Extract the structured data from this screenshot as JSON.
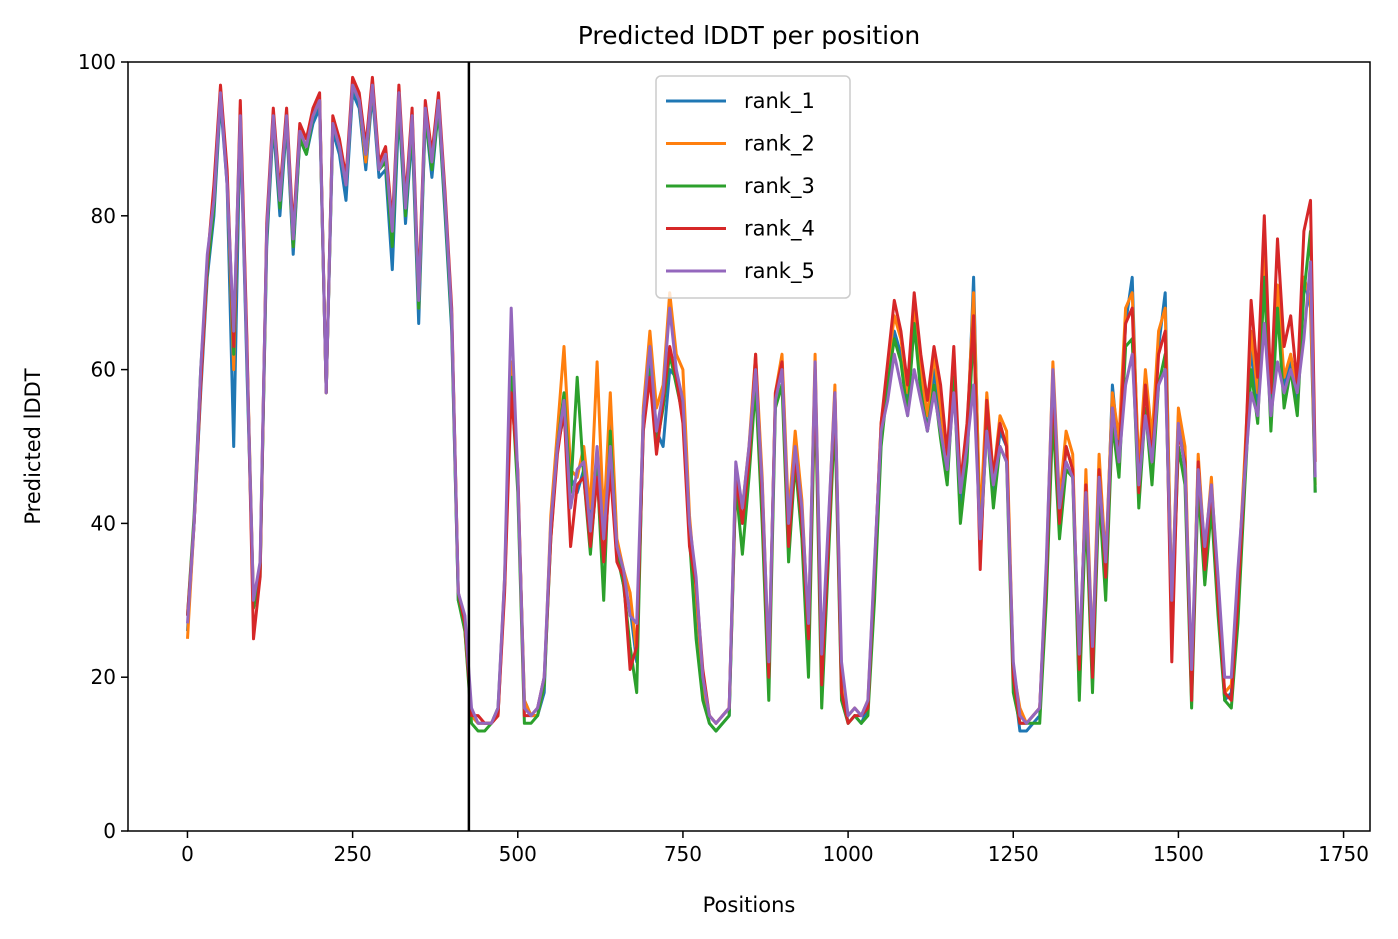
{
  "chart_data": {
    "type": "line",
    "title": "Predicted lDDT per position",
    "xlabel": "Positions",
    "ylabel": "Predicted lDDT",
    "xlim": [
      -90,
      1790
    ],
    "ylim": [
      0,
      100
    ],
    "xticks": [
      0,
      250,
      500,
      750,
      1000,
      1250,
      1500,
      1750
    ],
    "yticks": [
      0,
      20,
      40,
      60,
      80,
      100
    ],
    "vline": 426,
    "vline_color": "#000000",
    "grid": false,
    "legend_position": "upper-center",
    "x": [
      0,
      10,
      20,
      30,
      40,
      50,
      60,
      70,
      80,
      90,
      100,
      110,
      120,
      130,
      140,
      150,
      160,
      170,
      180,
      190,
      200,
      210,
      220,
      230,
      240,
      250,
      260,
      270,
      280,
      290,
      300,
      310,
      320,
      330,
      340,
      350,
      360,
      370,
      380,
      390,
      400,
      410,
      420,
      430,
      440,
      450,
      460,
      470,
      480,
      490,
      500,
      510,
      520,
      530,
      540,
      550,
      560,
      570,
      580,
      590,
      600,
      610,
      620,
      630,
      640,
      650,
      660,
      670,
      680,
      690,
      700,
      710,
      720,
      730,
      740,
      750,
      760,
      770,
      780,
      790,
      800,
      810,
      820,
      830,
      840,
      850,
      860,
      870,
      880,
      890,
      900,
      910,
      920,
      930,
      940,
      950,
      960,
      970,
      980,
      990,
      1000,
      1010,
      1020,
      1030,
      1040,
      1050,
      1060,
      1070,
      1080,
      1090,
      1100,
      1110,
      1120,
      1130,
      1140,
      1150,
      1160,
      1170,
      1180,
      1190,
      1200,
      1210,
      1220,
      1230,
      1240,
      1250,
      1260,
      1270,
      1280,
      1290,
      1300,
      1310,
      1320,
      1330,
      1340,
      1350,
      1360,
      1370,
      1380,
      1390,
      1400,
      1410,
      1420,
      1430,
      1440,
      1450,
      1460,
      1470,
      1480,
      1490,
      1500,
      1510,
      1520,
      1530,
      1540,
      1550,
      1560,
      1570,
      1580,
      1590,
      1600,
      1610,
      1620,
      1630,
      1640,
      1650,
      1660,
      1670,
      1680,
      1690,
      1700,
      1707
    ],
    "series": [
      {
        "name": "rank_1",
        "color": "#1f77b4",
        "values": [
          26,
          40,
          57,
          72,
          80,
          95,
          84,
          50,
          93,
          60,
          30,
          34,
          76,
          92,
          80,
          92,
          75,
          90,
          88,
          92,
          94,
          57,
          91,
          88,
          82,
          96,
          94,
          86,
          96,
          85,
          86,
          73,
          94,
          79,
          91,
          66,
          93,
          85,
          94,
          80,
          65,
          30,
          27,
          15,
          14,
          14,
          14,
          15,
          32,
          60,
          45,
          17,
          15,
          15,
          18,
          40,
          50,
          54,
          46,
          44,
          47,
          40,
          48,
          39,
          56,
          37,
          32,
          29,
          22,
          52,
          62,
          52,
          50,
          60,
          59,
          55,
          40,
          30,
          18,
          14,
          13,
          14,
          15,
          46,
          40,
          48,
          60,
          45,
          20,
          56,
          60,
          40,
          50,
          42,
          25,
          60,
          20,
          38,
          56,
          19,
          14,
          15,
          14,
          16,
          33,
          51,
          58,
          65,
          62,
          55,
          66,
          58,
          52,
          60,
          53,
          46,
          59,
          42,
          50,
          72,
          38,
          55,
          44,
          52,
          50,
          20,
          13,
          13,
          14,
          15,
          32,
          56,
          41,
          50,
          47,
          18,
          45,
          22,
          47,
          33,
          58,
          49,
          66,
          72,
          45,
          58,
          49,
          63,
          70,
          28,
          54,
          49,
          18,
          48,
          35,
          44,
          30,
          17,
          18,
          31,
          47,
          63,
          55,
          78,
          56,
          70,
          58,
          61,
          56,
          72,
          68,
          44
        ]
      },
      {
        "name": "rank_2",
        "color": "#ff7f0e",
        "values": [
          25,
          40,
          58,
          73,
          82,
          96,
          85,
          60,
          94,
          63,
          30,
          34,
          78,
          93,
          82,
          93,
          76,
          91,
          89,
          93,
          95,
          57,
          92,
          89,
          84,
          97,
          95,
          87,
          97,
          86,
          88,
          77,
          96,
          81,
          93,
          68,
          94,
          87,
          95,
          82,
          67,
          31,
          26,
          15,
          14,
          14,
          14,
          15,
          33,
          61,
          46,
          17,
          15,
          15,
          19,
          41,
          52,
          63,
          47,
          46,
          50,
          42,
          61,
          40,
          57,
          38,
          34,
          31,
          23,
          55,
          65,
          55,
          58,
          70,
          62,
          60,
          41,
          31,
          19,
          15,
          14,
          15,
          16,
          47,
          42,
          50,
          62,
          46,
          21,
          57,
          62,
          41,
          52,
          43,
          26,
          62,
          21,
          39,
          58,
          20,
          15,
          16,
          15,
          17,
          34,
          53,
          60,
          67,
          64,
          57,
          68,
          60,
          54,
          62,
          55,
          48,
          61,
          44,
          52,
          70,
          40,
          57,
          46,
          54,
          52,
          21,
          16,
          14,
          15,
          16,
          34,
          61,
          43,
          52,
          49,
          19,
          47,
          23,
          49,
          35,
          57,
          51,
          68,
          70,
          47,
          60,
          51,
          65,
          68,
          29,
          55,
          50,
          19,
          49,
          36,
          46,
          31,
          18,
          19,
          32,
          48,
          65,
          57,
          75,
          57,
          71,
          59,
          62,
          57,
          72,
          69,
          45
        ]
      },
      {
        "name": "rank_3",
        "color": "#2ca02c",
        "values": [
          28,
          41,
          60,
          73,
          81,
          96,
          85,
          62,
          93,
          62,
          29,
          33,
          77,
          93,
          81,
          93,
          76,
          90,
          88,
          93,
          95,
          57,
          92,
          89,
          84,
          97,
          95,
          88,
          97,
          86,
          87,
          76,
          95,
          80,
          92,
          68,
          93,
          86,
          94,
          81,
          66,
          30,
          26,
          14,
          13,
          13,
          14,
          16,
          32,
          59,
          44,
          14,
          14,
          15,
          19,
          38,
          50,
          57,
          44,
          59,
          46,
          36,
          47,
          30,
          52,
          36,
          32,
          24,
          18,
          54,
          60,
          50,
          55,
          62,
          58,
          54,
          38,
          25,
          17,
          14,
          13,
          14,
          15,
          45,
          36,
          46,
          58,
          40,
          17,
          55,
          58,
          35,
          48,
          38,
          20,
          58,
          16,
          35,
          54,
          17,
          14,
          15,
          14,
          15,
          30,
          50,
          58,
          64,
          61,
          54,
          66,
          57,
          52,
          58,
          51,
          45,
          59,
          40,
          48,
          66,
          36,
          53,
          42,
          50,
          48,
          18,
          14,
          14,
          14,
          14,
          30,
          54,
          38,
          47,
          46,
          17,
          42,
          18,
          44,
          30,
          53,
          46,
          63,
          64,
          42,
          55,
          45,
          58,
          62,
          26,
          50,
          45,
          16,
          45,
          32,
          42,
          28,
          17,
          16,
          27,
          44,
          60,
          53,
          72,
          52,
          68,
          55,
          60,
          54,
          70,
          78,
          44
        ]
      },
      {
        "name": "rank_4",
        "color": "#d62728",
        "values": [
          28,
          40,
          58,
          74,
          84,
          97,
          86,
          63,
          95,
          64,
          25,
          33,
          79,
          94,
          83,
          94,
          78,
          92,
          90,
          94,
          96,
          57,
          93,
          90,
          85,
          98,
          96,
          89,
          98,
          87,
          89,
          79,
          97,
          82,
          94,
          70,
          95,
          88,
          96,
          83,
          68,
          31,
          27,
          15,
          15,
          14,
          14,
          15,
          31,
          57,
          47,
          15,
          15,
          16,
          20,
          38,
          49,
          55,
          37,
          45,
          46,
          37,
          46,
          35,
          47,
          35,
          33,
          21,
          24,
          52,
          59,
          49,
          56,
          63,
          59,
          53,
          37,
          32,
          21,
          15,
          14,
          15,
          16,
          46,
          40,
          48,
          62,
          43,
          20,
          57,
          61,
          37,
          49,
          40,
          25,
          60,
          19,
          37,
          57,
          18,
          14,
          15,
          15,
          16,
          34,
          53,
          61,
          69,
          65,
          58,
          70,
          62,
          56,
          63,
          58,
          49,
          63,
          45,
          53,
          67,
          34,
          56,
          46,
          53,
          50,
          20,
          14,
          14,
          15,
          16,
          33,
          58,
          40,
          50,
          47,
          21,
          45,
          20,
          47,
          33,
          55,
          48,
          66,
          68,
          44,
          58,
          48,
          62,
          65,
          22,
          52,
          48,
          17,
          48,
          34,
          45,
          30,
          18,
          17,
          30,
          46,
          69,
          59,
          80,
          57,
          77,
          63,
          67,
          58,
          78,
          82,
          48
        ]
      },
      {
        "name": "rank_5",
        "color": "#9467bd",
        "values": [
          27,
          40,
          60,
          75,
          82,
          96,
          84,
          65,
          93,
          62,
          30,
          35,
          78,
          93,
          82,
          93,
          77,
          91,
          89,
          93,
          95,
          57,
          92,
          89,
          84,
          97,
          95,
          88,
          97,
          86,
          88,
          78,
          96,
          81,
          93,
          69,
          94,
          87,
          95,
          82,
          67,
          31,
          28,
          16,
          14,
          14,
          14,
          16,
          33,
          68,
          46,
          16,
          15,
          16,
          20,
          40,
          50,
          56,
          42,
          47,
          48,
          39,
          50,
          38,
          50,
          37,
          34,
          28,
          27,
          54,
          63,
          52,
          57,
          68,
          60,
          56,
          40,
          33,
          20,
          15,
          14,
          15,
          16,
          48,
          42,
          50,
          60,
          45,
          22,
          56,
          60,
          40,
          50,
          42,
          27,
          61,
          23,
          40,
          57,
          22,
          15,
          16,
          15,
          17,
          35,
          52,
          56,
          62,
          58,
          54,
          60,
          56,
          52,
          57,
          52,
          47,
          57,
          44,
          50,
          58,
          38,
          52,
          45,
          50,
          48,
          22,
          15,
          14,
          15,
          16,
          35,
          60,
          42,
          48,
          46,
          23,
          44,
          24,
          46,
          35,
          55,
          48,
          58,
          62,
          45,
          54,
          48,
          58,
          60,
          30,
          53,
          47,
          21,
          47,
          37,
          45,
          33,
          20,
          20,
          34,
          46,
          57,
          54,
          66,
          54,
          61,
          57,
          60,
          57,
          64,
          74,
          46
        ]
      }
    ]
  }
}
